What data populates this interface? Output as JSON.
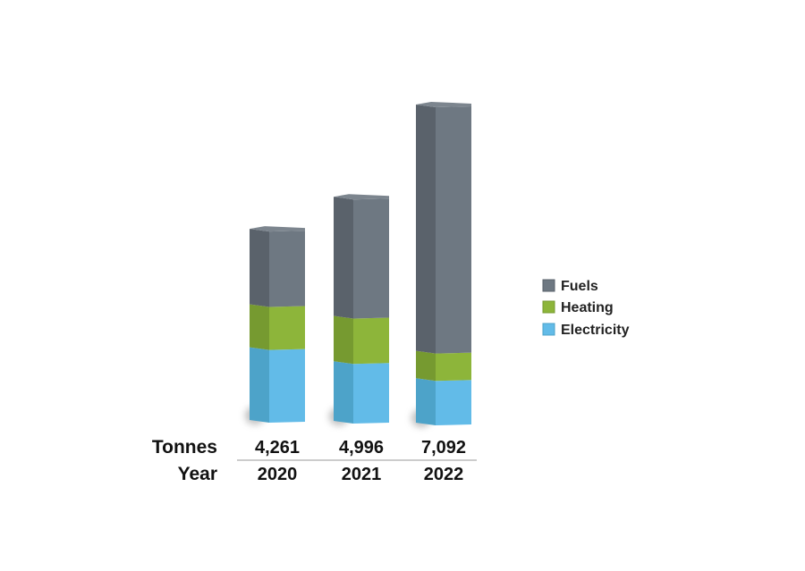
{
  "chart_data": {
    "type": "bar",
    "stacked": true,
    "categories": [
      "2020",
      "2021",
      "2022"
    ],
    "series": [
      {
        "name": "Electricity",
        "values": [
          1620,
          1330,
          990
        ]
      },
      {
        "name": "Heating",
        "values": [
          960,
          1010,
          610
        ]
      },
      {
        "name": "Fuels",
        "values": [
          1681,
          2656,
          5492
        ]
      }
    ],
    "totals_row": {
      "label": "Tonnes",
      "values": [
        "4,261",
        "4,996",
        "7,092"
      ]
    },
    "years_row": {
      "label": "Year",
      "values": [
        "2020",
        "2021",
        "2022"
      ]
    },
    "legend": {
      "placement": "right",
      "items": [
        "Fuels",
        "Heating",
        "Electricity"
      ]
    },
    "colors": {
      "Electricity": {
        "front": "#62bbe8",
        "side": "#4da3c9"
      },
      "Heating": {
        "front": "#8db53a",
        "side": "#769a30"
      },
      "Fuels": {
        "front": "#6e7882",
        "side": "#5a626b",
        "top": "#7c858e"
      }
    },
    "style": "3d-columns",
    "grid": false
  }
}
